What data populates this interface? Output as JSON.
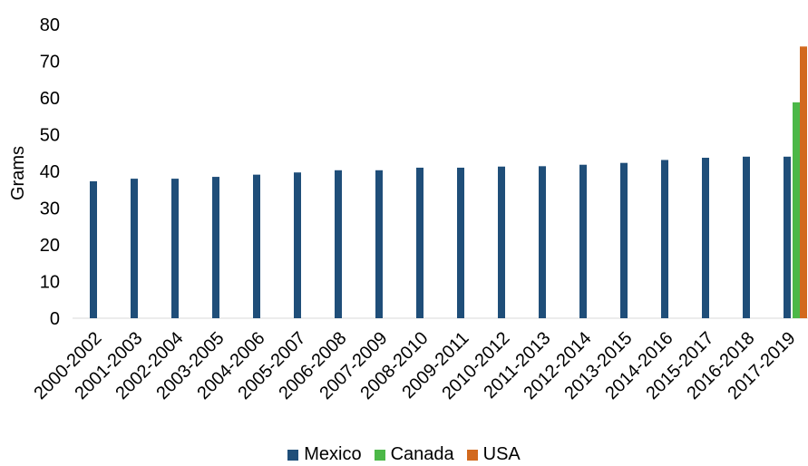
{
  "chart_data": {
    "type": "bar",
    "ylabel": "Grams",
    "ylim": [
      0,
      80
    ],
    "yticks": [
      "0",
      "10",
      "20",
      "30",
      "40",
      "50",
      "60",
      "70",
      "80"
    ],
    "grid": false,
    "legend_position": "bottom",
    "categories": [
      "2000-2002",
      "2001-2003",
      "2002-2004",
      "2003-2005",
      "2004-2006",
      "2005-2007",
      "2006-2008",
      "2007-2009",
      "2008-2010",
      "2009-2011",
      "2010-2012",
      "2011-2013",
      "2012-2014",
      "2013-2015",
      "2014-2016",
      "2015-2017",
      "2016-2018",
      "2017-2019"
    ],
    "series": [
      {
        "name": "Mexico",
        "color": "#1f4e79",
        "values": [
          37.3,
          38.0,
          38.0,
          38.5,
          39.1,
          39.7,
          40.3,
          40.3,
          41.0,
          41.0,
          41.3,
          41.4,
          41.8,
          42.3,
          43.1,
          43.7,
          44.0,
          44.0
        ]
      },
      {
        "name": "Canada",
        "color": "#4cb848",
        "values": [
          null,
          null,
          null,
          null,
          null,
          null,
          null,
          null,
          null,
          null,
          null,
          null,
          null,
          null,
          null,
          null,
          null,
          58.8
        ]
      },
      {
        "name": "USA",
        "color": "#d2691e",
        "values": [
          null,
          null,
          null,
          null,
          null,
          null,
          null,
          null,
          null,
          null,
          null,
          null,
          null,
          null,
          null,
          null,
          null,
          74.0
        ]
      }
    ]
  }
}
